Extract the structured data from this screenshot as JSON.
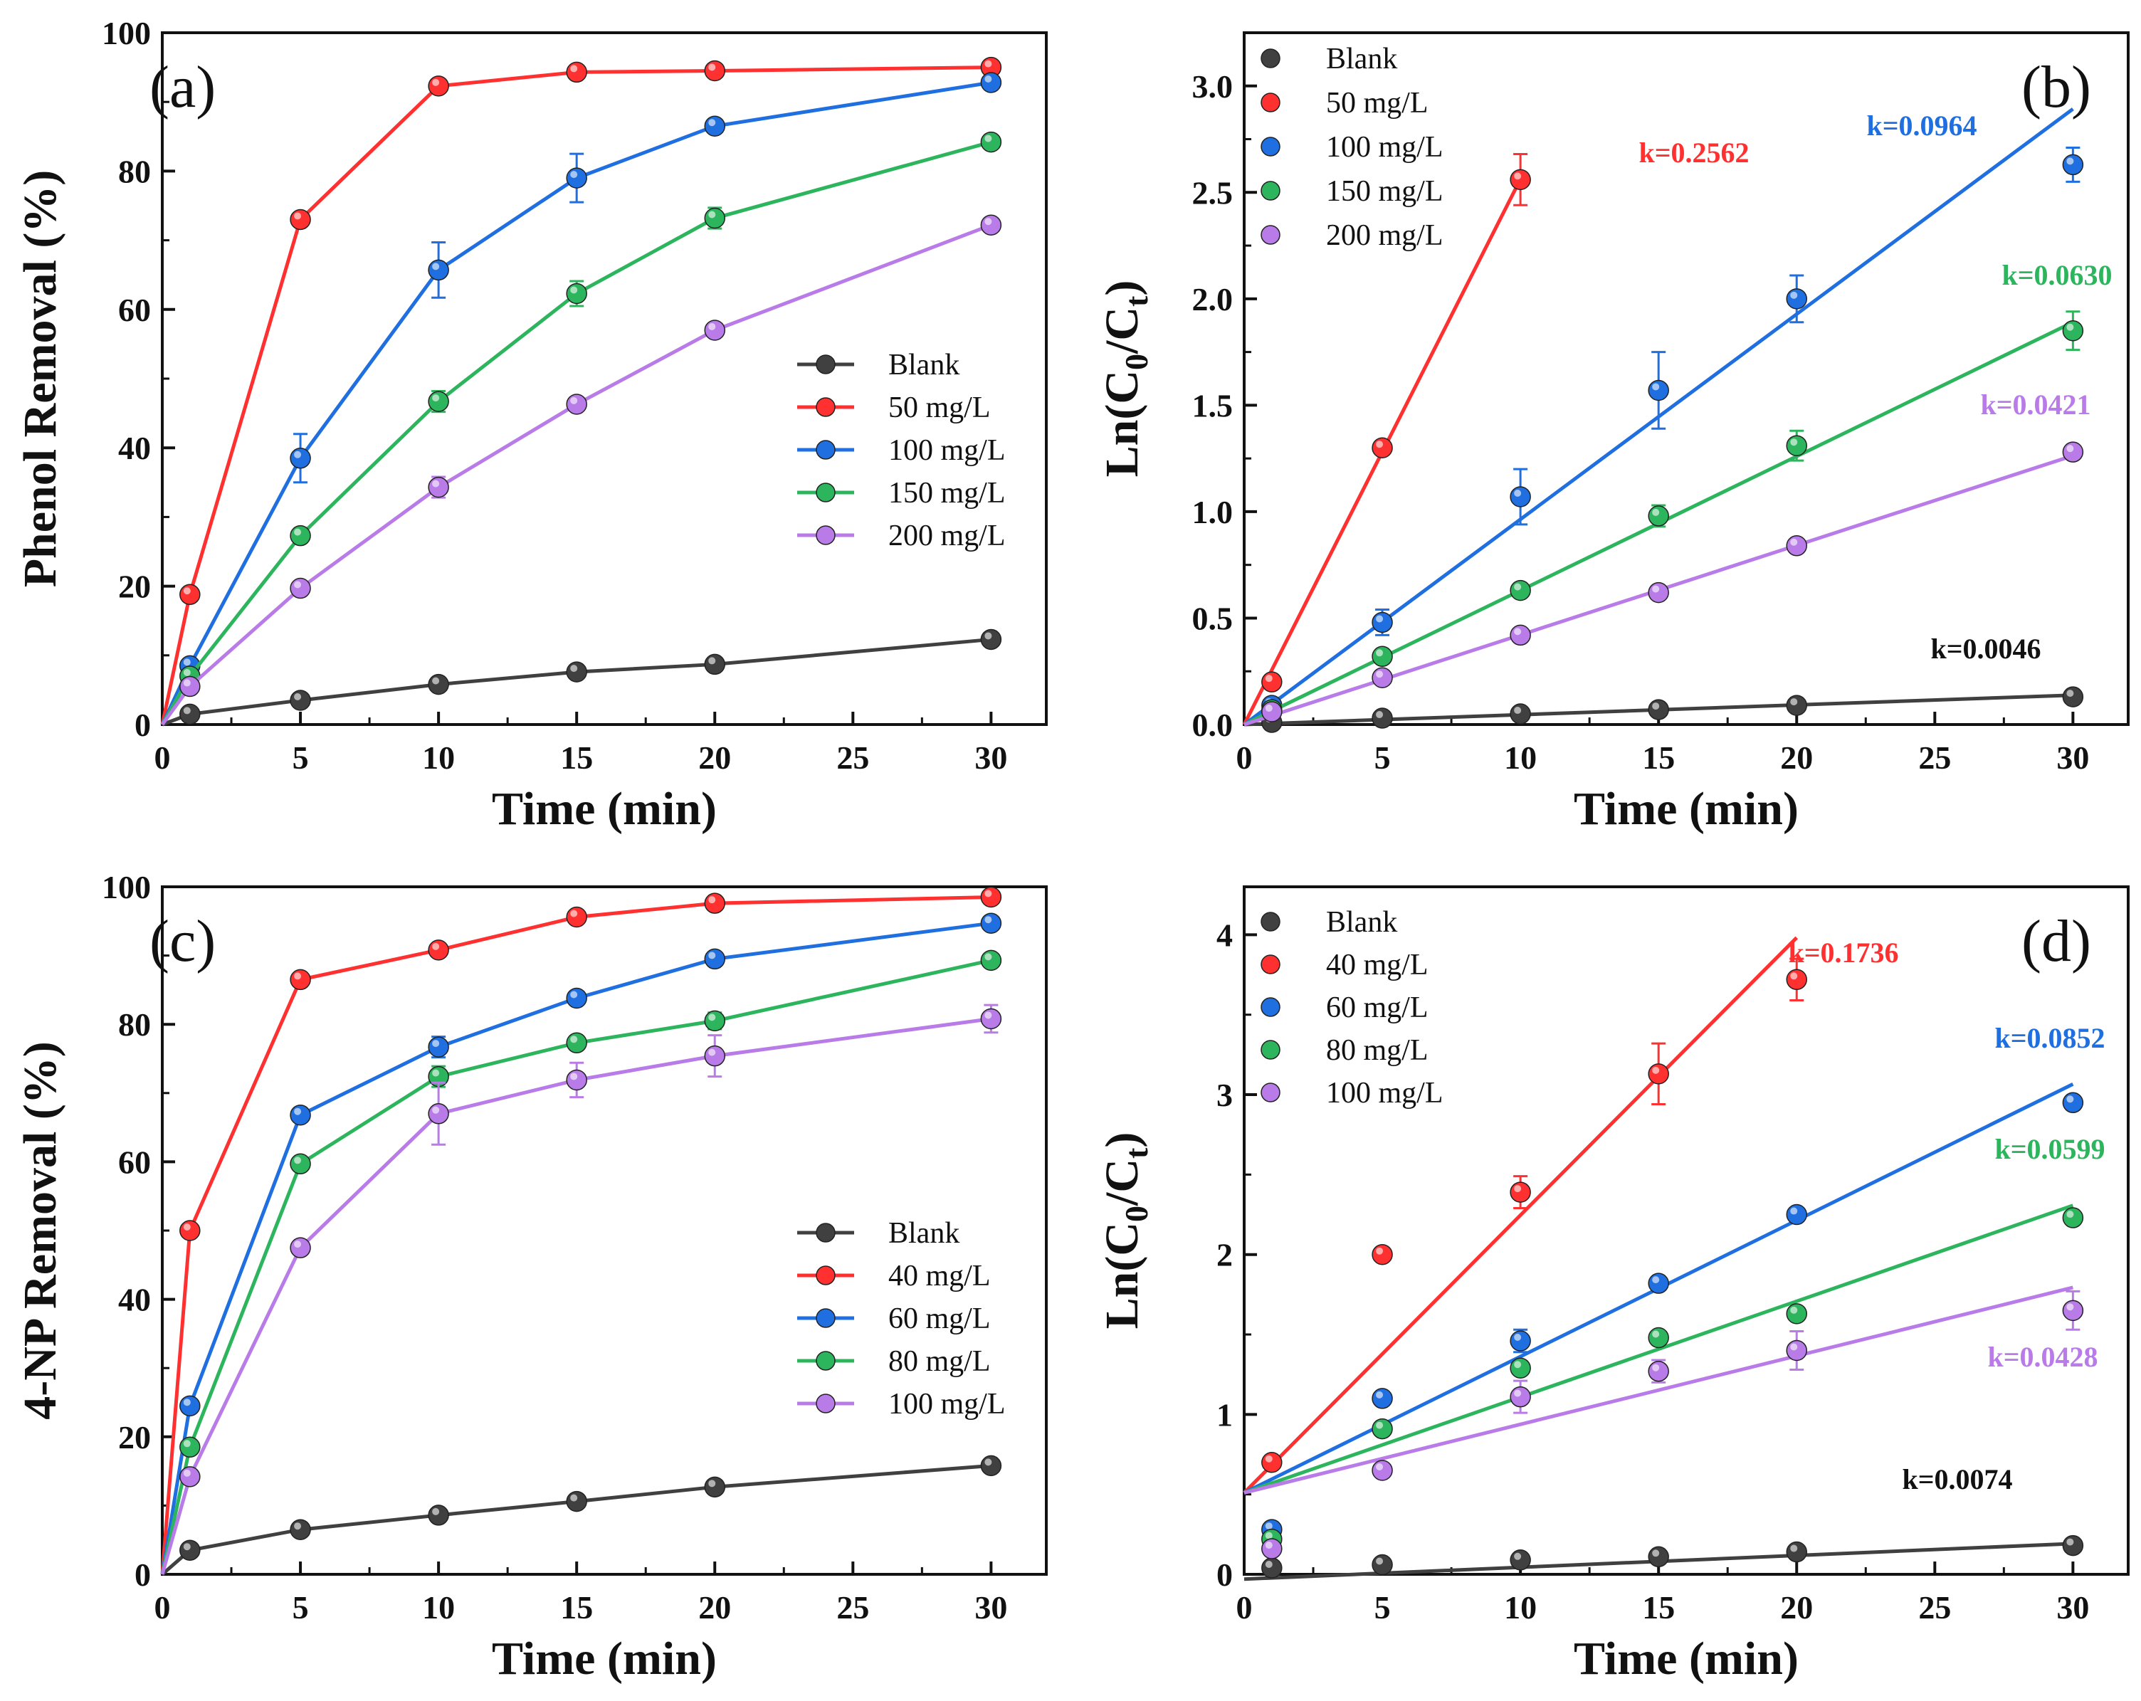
{
  "chart_data": [
    {
      "panel": "(a)",
      "type": "line",
      "xlabel": "Time (min)",
      "ylabel": "Phenol Removal (%)",
      "xlim": [
        0,
        32
      ],
      "ylim": [
        0,
        100
      ],
      "xticks": [
        0,
        5,
        10,
        15,
        20,
        25,
        30
      ],
      "yticks": [
        0,
        20,
        40,
        60,
        80,
        100
      ],
      "legend_position": "center-right",
      "x": [
        0,
        1,
        5,
        10,
        15,
        20,
        30
      ],
      "series": [
        {
          "name": "Blank",
          "color": "#404040",
          "values": [
            0,
            1.5,
            3.5,
            5.8,
            7.6,
            8.7,
            12.3
          ]
        },
        {
          "name": "50 mg/L",
          "color": "#ff3030",
          "values": [
            0,
            18.8,
            73,
            92.3,
            94.3,
            94.5,
            95
          ]
        },
        {
          "name": "100 mg/L",
          "color": "#1f6fe0",
          "values": [
            0,
            8.5,
            38.5,
            65.7,
            79,
            86.5,
            92.8
          ],
          "errors": [
            0,
            0,
            3.5,
            4,
            3.5,
            0,
            0
          ]
        },
        {
          "name": "150 mg/L",
          "color": "#2db55d",
          "values": [
            0,
            7,
            27.3,
            46.7,
            62.3,
            73.2,
            84.2
          ],
          "errors": [
            0,
            0,
            0,
            1.5,
            1.8,
            1.5,
            0
          ]
        },
        {
          "name": "200 mg/L",
          "color": "#b87be8",
          "values": [
            0,
            5.5,
            19.7,
            34.3,
            46.3,
            57,
            72.2
          ],
          "errors": [
            0,
            0,
            0,
            1.5,
            0,
            0,
            0
          ]
        }
      ]
    },
    {
      "panel": "(b)",
      "type": "scatter",
      "xlabel": "Time (min)",
      "ylabel_main": "Ln(C",
      "ylabel_sub0": "0",
      "ylabel_mid": "/C",
      "ylabel_sub1": "t",
      "ylabel_end": ")",
      "xlim": [
        0,
        32
      ],
      "ylim": [
        0,
        3.25
      ],
      "xticks": [
        0,
        5,
        10,
        15,
        20,
        25,
        30
      ],
      "yticks": [
        0.0,
        0.5,
        1.0,
        1.5,
        2.0,
        2.5,
        3.0
      ],
      "ytick_labels": [
        "0.0",
        "0.5",
        "1.0",
        "1.5",
        "2.0",
        "2.5",
        "3.0"
      ],
      "legend_position": "top-left",
      "series": [
        {
          "name": "Blank",
          "color": "#404040",
          "x": [
            1,
            5,
            10,
            15,
            20,
            30
          ],
          "values": [
            0.01,
            0.03,
            0.05,
            0.07,
            0.09,
            0.13
          ],
          "fit_slope": 0.0046,
          "fit_x": [
            0,
            30
          ],
          "k_label": "k=0.0046"
        },
        {
          "name": "50 mg/L",
          "color": "#ff3030",
          "x": [
            1,
            5,
            10
          ],
          "values": [
            0.2,
            1.3,
            2.56
          ],
          "errors": [
            0,
            0,
            0.12
          ],
          "fit_slope": 0.2562,
          "fit_x": [
            0,
            10
          ],
          "k_label": "k=0.2562"
        },
        {
          "name": "100 mg/L",
          "color": "#1f6fe0",
          "x": [
            1,
            5,
            10,
            15,
            20,
            30
          ],
          "values": [
            0.09,
            0.48,
            1.07,
            1.57,
            2.0,
            2.63
          ],
          "errors": [
            0,
            0.06,
            0.13,
            0.18,
            0.11,
            0.08
          ],
          "fit_slope": 0.0964,
          "fit_x": [
            0,
            30
          ],
          "k_label": "k=0.0964"
        },
        {
          "name": "150 mg/L",
          "color": "#2db55d",
          "x": [
            1,
            5,
            10,
            15,
            20,
            30
          ],
          "values": [
            0.07,
            0.32,
            0.63,
            0.98,
            1.31,
            1.85
          ],
          "errors": [
            0,
            0,
            0,
            0.05,
            0.07,
            0.09
          ],
          "fit_slope": 0.063,
          "fit_x": [
            0,
            30
          ],
          "k_label": "k=0.0630"
        },
        {
          "name": "200 mg/L",
          "color": "#b87be8",
          "x": [
            1,
            5,
            10,
            15,
            20,
            30
          ],
          "values": [
            0.06,
            0.22,
            0.42,
            0.62,
            0.84,
            1.28
          ],
          "fit_slope": 0.0421,
          "fit_x": [
            0,
            30
          ],
          "k_label": "k=0.0421"
        }
      ]
    },
    {
      "panel": "(c)",
      "type": "line",
      "xlabel": "Time (min)",
      "ylabel": "4-NP Removal (%)",
      "xlim": [
        0,
        32
      ],
      "ylim": [
        0,
        100
      ],
      "xticks": [
        0,
        5,
        10,
        15,
        20,
        25,
        30
      ],
      "yticks": [
        0,
        20,
        40,
        60,
        80,
        100
      ],
      "legend_position": "bottom-right",
      "x": [
        0,
        1,
        5,
        10,
        15,
        20,
        30
      ],
      "series": [
        {
          "name": "Blank",
          "color": "#404040",
          "values": [
            0,
            3.5,
            6.5,
            8.6,
            10.6,
            12.7,
            15.8
          ]
        },
        {
          "name": "40 mg/L",
          "color": "#ff3030",
          "values": [
            0,
            50,
            86.5,
            90.8,
            95.6,
            97.6,
            98.5
          ]
        },
        {
          "name": "60 mg/L",
          "color": "#1f6fe0",
          "values": [
            0,
            24.5,
            66.8,
            76.7,
            83.8,
            89.5,
            94.7
          ],
          "errors": [
            0,
            0,
            0,
            1.5,
            0,
            0,
            0
          ]
        },
        {
          "name": "80 mg/L",
          "color": "#2db55d",
          "values": [
            0,
            18.5,
            59.7,
            72.4,
            77.3,
            80.5,
            89.3
          ],
          "errors": [
            0,
            0,
            0,
            1.5,
            1,
            1.2,
            0
          ]
        },
        {
          "name": "100 mg/L",
          "color": "#b87be8",
          "values": [
            0,
            14.2,
            47.5,
            67,
            71.9,
            75.4,
            80.8
          ],
          "errors": [
            0,
            0,
            0,
            4.5,
            2.5,
            3,
            2
          ]
        }
      ]
    },
    {
      "panel": "(d)",
      "type": "scatter",
      "xlabel": "Time (min)",
      "ylabel_main": "Ln(C",
      "ylabel_sub0": "0",
      "ylabel_mid": "/C",
      "ylabel_sub1": "t",
      "ylabel_end": ")",
      "xlim": [
        0,
        32
      ],
      "ylim": [
        0,
        4.3
      ],
      "xticks": [
        0,
        5,
        10,
        15,
        20,
        25,
        30
      ],
      "yticks": [
        0,
        1,
        2,
        3,
        4
      ],
      "ytick_labels": [
        "0",
        "1",
        "2",
        "3",
        "4"
      ],
      "legend_position": "top-left",
      "series": [
        {
          "name": "Blank",
          "color": "#404040",
          "x": [
            1,
            5,
            10,
            15,
            20,
            30
          ],
          "values": [
            0.04,
            0.06,
            0.09,
            0.11,
            0.14,
            0.18
          ],
          "fit_slope": 0.0074,
          "fit_x": [
            0,
            30
          ],
          "fit_intercept": -0.03,
          "k_label": "k=0.0074"
        },
        {
          "name": "40 mg/L",
          "color": "#ff3030",
          "x": [
            1,
            5,
            10,
            15,
            20
          ],
          "values": [
            0.7,
            2.0,
            2.39,
            3.13,
            3.72
          ],
          "errors": [
            0,
            0,
            0.1,
            0.19,
            0.13
          ],
          "fit_slope": 0.1736,
          "fit_x": [
            0,
            20
          ],
          "fit_intercept": 0.51,
          "k_label": "k=0.1736"
        },
        {
          "name": "60 mg/L",
          "color": "#1f6fe0",
          "x": [
            1,
            5,
            10,
            15,
            20,
            30
          ],
          "values": [
            0.28,
            1.1,
            1.46,
            1.82,
            2.25,
            2.95
          ],
          "errors": [
            0,
            0,
            0.07,
            0,
            0,
            0
          ],
          "fit_slope": 0.0852,
          "fit_x": [
            0,
            30
          ],
          "fit_intercept": 0.51,
          "k_label": "k=0.0852"
        },
        {
          "name": "80 mg/L",
          "color": "#2db55d",
          "x": [
            1,
            5,
            10,
            15,
            20,
            30
          ],
          "values": [
            0.22,
            0.91,
            1.29,
            1.48,
            1.63,
            2.23
          ],
          "fit_slope": 0.0599,
          "fit_x": [
            0,
            30
          ],
          "fit_intercept": 0.51,
          "k_label": "k=0.0599"
        },
        {
          "name": "100 mg/L",
          "color": "#b87be8",
          "x": [
            1,
            5,
            10,
            15,
            20,
            30
          ],
          "values": [
            0.16,
            0.65,
            1.11,
            1.27,
            1.4,
            1.65
          ],
          "errors": [
            0,
            0,
            0.1,
            0.07,
            0.12,
            0.12
          ],
          "fit_slope": 0.0428,
          "fit_x": [
            0,
            30
          ],
          "fit_intercept": 0.51,
          "k_label": "k=0.0428"
        }
      ]
    }
  ]
}
